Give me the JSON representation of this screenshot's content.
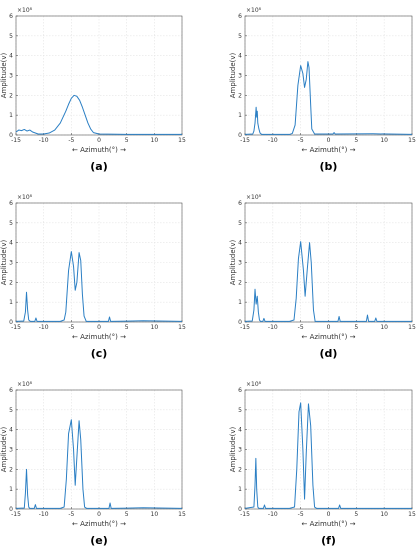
{
  "figure": {
    "panels": [
      "a",
      "b",
      "c",
      "d",
      "e",
      "f"
    ]
  },
  "colors": {
    "line": "#2b7fc4",
    "axis": "#555555",
    "grid": "#e4e4e4"
  },
  "chart_data": [
    {
      "type": "line",
      "caption": "(a)",
      "xlabel": "← Azimuth(°) →",
      "ylabel": "Amplitude(v)",
      "exponent_label": "×10⁸",
      "xlim": [
        -15,
        15
      ],
      "ylim": [
        0,
        6
      ],
      "xticks": [
        -15,
        -10,
        -5,
        0,
        5,
        10,
        15
      ],
      "yticks": [
        0,
        1,
        2,
        3,
        4,
        5,
        6
      ],
      "grid": true,
      "series": [
        {
          "x": [
            -15,
            -14.5,
            -14,
            -13.5,
            -13,
            -12.5,
            -12,
            -11,
            -10,
            -9,
            -8,
            -7,
            -6,
            -5.5,
            -5,
            -4.5,
            -4,
            -3.5,
            -3,
            -2.5,
            -2,
            -1.5,
            -1,
            0,
            5,
            10,
            15
          ],
          "y": [
            0.15,
            0.25,
            0.22,
            0.28,
            0.2,
            0.25,
            0.15,
            0.05,
            0.05,
            0.1,
            0.25,
            0.6,
            1.2,
            1.55,
            1.85,
            2.0,
            1.95,
            1.75,
            1.4,
            1.0,
            0.6,
            0.3,
            0.12,
            0.05,
            0.03,
            0.03,
            0.03
          ]
        }
      ]
    },
    {
      "type": "line",
      "caption": "(b)",
      "xlabel": "← Azimuth(°) →",
      "ylabel": "Amplitude(v)",
      "exponent_label": "×10⁸",
      "xlim": [
        -15,
        15
      ],
      "ylim": [
        0,
        6
      ],
      "xticks": [
        -15,
        -10,
        -5,
        0,
        5,
        10,
        15
      ],
      "yticks": [
        0,
        1,
        2,
        3,
        4,
        5,
        6
      ],
      "grid": true,
      "series": [
        {
          "x": [
            -15,
            -13.6,
            -13.4,
            -13.2,
            -13.0,
            -12.9,
            -12.8,
            -12.7,
            -12.5,
            -12.3,
            -12.0,
            -7,
            -6.5,
            -6.0,
            -5.5,
            -5.0,
            -4.6,
            -4.3,
            -4.0,
            -3.7,
            -3.5,
            -3.2,
            -3.0,
            -2.5,
            0.8,
            1.0,
            1.2,
            8,
            15
          ],
          "y": [
            0.03,
            0.05,
            0.2,
            0.6,
            1.4,
            0.9,
            1.2,
            0.6,
            0.3,
            0.1,
            0.03,
            0.03,
            0.08,
            0.5,
            2.5,
            3.5,
            3.1,
            2.4,
            2.8,
            3.7,
            3.4,
            1.5,
            0.3,
            0.05,
            0.05,
            0.12,
            0.05,
            0.06,
            0.03
          ]
        }
      ]
    },
    {
      "type": "line",
      "caption": "(c)",
      "xlabel": "← Azimuth(°) →",
      "ylabel": "Amplitude(v)",
      "exponent_label": "×10⁸",
      "xlim": [
        -15,
        15
      ],
      "ylim": [
        0,
        6
      ],
      "xticks": [
        -15,
        -10,
        -5,
        0,
        5,
        10,
        15
      ],
      "yticks": [
        0,
        1,
        2,
        3,
        4,
        5,
        6
      ],
      "grid": true,
      "series": [
        {
          "x": [
            -15,
            -13.6,
            -13.3,
            -13.1,
            -12.9,
            -12.7,
            -12.4,
            -11.6,
            -11.4,
            -11.2,
            -7,
            -6.3,
            -6.0,
            -5.5,
            -5.0,
            -4.6,
            -4.3,
            -4.0,
            -3.6,
            -3.3,
            -3.0,
            -2.7,
            -2.3,
            1.7,
            1.9,
            2.1,
            8,
            15
          ],
          "y": [
            0.03,
            0.05,
            0.5,
            1.5,
            0.6,
            0.1,
            0.03,
            0.03,
            0.2,
            0.03,
            0.03,
            0.1,
            0.5,
            2.6,
            3.55,
            2.8,
            1.6,
            2.0,
            3.5,
            3.1,
            1.4,
            0.3,
            0.03,
            0.03,
            0.25,
            0.03,
            0.06,
            0.03
          ]
        }
      ]
    },
    {
      "type": "line",
      "caption": "(d)",
      "xlabel": "← Azimuth(°) →",
      "ylabel": "Amplitude(v)",
      "exponent_label": "×10⁸",
      "xlim": [
        -15,
        15
      ],
      "ylim": [
        0,
        6
      ],
      "xticks": [
        -15,
        -10,
        -5,
        0,
        5,
        10,
        15
      ],
      "yticks": [
        0,
        1,
        2,
        3,
        4,
        5,
        6
      ],
      "grid": true,
      "series": [
        {
          "x": [
            -15,
            -13.7,
            -13.4,
            -13.2,
            -13.0,
            -12.8,
            -12.6,
            -12.4,
            -12.2,
            -11.8,
            -11.6,
            -11.4,
            -7,
            -6.2,
            -5.8,
            -5.4,
            -5.0,
            -4.5,
            -4.2,
            -3.8,
            -3.4,
            -3.1,
            -2.7,
            -2.4,
            1.7,
            1.9,
            2.1,
            6.8,
            7.0,
            7.2,
            8.3,
            8.5,
            8.7,
            15
          ],
          "y": [
            0.03,
            0.05,
            0.6,
            1.65,
            0.9,
            1.3,
            0.5,
            0.1,
            0.03,
            0.03,
            0.18,
            0.03,
            0.03,
            0.1,
            1.2,
            3.2,
            4.05,
            2.6,
            1.3,
            2.7,
            4.0,
            3.0,
            0.6,
            0.03,
            0.03,
            0.28,
            0.03,
            0.03,
            0.35,
            0.03,
            0.03,
            0.2,
            0.03,
            0.03
          ]
        }
      ]
    },
    {
      "type": "line",
      "caption": "(e)",
      "xlabel": "← Azimuth(°) →",
      "ylabel": "Amplitude(v)",
      "exponent_label": "×10⁸",
      "xlim": [
        -15,
        15
      ],
      "ylim": [
        0,
        6
      ],
      "xticks": [
        -15,
        -10,
        -5,
        0,
        5,
        10,
        15
      ],
      "yticks": [
        0,
        1,
        2,
        3,
        4,
        5,
        6
      ],
      "grid": true,
      "series": [
        {
          "x": [
            -15,
            -13.5,
            -13.3,
            -13.1,
            -12.9,
            -12.7,
            -12.5,
            -11.7,
            -11.5,
            -11.3,
            -7,
            -6.3,
            -5.9,
            -5.5,
            -5.0,
            -4.6,
            -4.3,
            -4.0,
            -3.6,
            -3.3,
            -2.9,
            -2.6,
            -2.2,
            1.8,
            2.0,
            2.2,
            8,
            15
          ],
          "y": [
            0.03,
            0.05,
            0.8,
            2.0,
            0.7,
            0.1,
            0.03,
            0.03,
            0.22,
            0.03,
            0.03,
            0.1,
            1.5,
            3.8,
            4.5,
            3.0,
            1.2,
            2.6,
            4.45,
            3.5,
            1.0,
            0.1,
            0.03,
            0.03,
            0.3,
            0.03,
            0.06,
            0.03
          ]
        }
      ]
    },
    {
      "type": "line",
      "caption": "(f)",
      "xlabel": "← Azimuth(°) →",
      "ylabel": "Amplitude(v)",
      "exponent_label": "×10⁸",
      "xlim": [
        -15,
        15
      ],
      "ylim": [
        0,
        6
      ],
      "xticks": [
        -15,
        -10,
        -5,
        0,
        5,
        10,
        15
      ],
      "yticks": [
        0,
        1,
        2,
        3,
        4,
        5,
        6
      ],
      "grid": true,
      "series": [
        {
          "x": [
            -15,
            -13.4,
            -13.2,
            -13.05,
            -12.9,
            -12.7,
            -12.5,
            -11.7,
            -11.5,
            -11.3,
            -7,
            -6.1,
            -5.7,
            -5.3,
            -5.0,
            -4.6,
            -4.3,
            -4.0,
            -3.6,
            -3.2,
            -2.8,
            -2.5,
            -2.1,
            1.8,
            2.0,
            2.2,
            15
          ],
          "y": [
            0.03,
            0.1,
            1.2,
            2.55,
            1.0,
            0.1,
            0.03,
            0.03,
            0.2,
            0.03,
            0.03,
            0.1,
            2.0,
            4.9,
            5.35,
            3.0,
            0.5,
            2.8,
            5.3,
            4.2,
            1.2,
            0.1,
            0.03,
            0.03,
            0.2,
            0.03,
            0.03
          ]
        }
      ]
    }
  ]
}
